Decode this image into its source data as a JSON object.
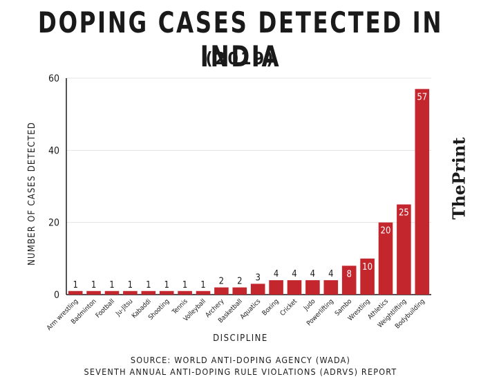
{
  "header": {
    "title": "DOPING CASES DETECTED IN INDIA",
    "subtitle": "(2019)"
  },
  "brand": {
    "name": "ThePrint"
  },
  "footer": {
    "source_line1": "SOURCE: WORLD ANTI-DOPING AGENCY (WADA)",
    "source_line2": "SEVENTH ANNUAL ANTI-DOPING RULE VIOLATIONS (ADRVS) REPORT"
  },
  "colors": {
    "bar": "#c4262e",
    "axis": "#1a1a1a",
    "grid": "#e3e3e3",
    "label_inside": "#ffffff"
  },
  "chart_data": {
    "type": "bar",
    "title": "DOPING CASES DETECTED IN INDIA",
    "subtitle": "(2019)",
    "xlabel": "DISCIPLINE",
    "ylabel": "NUMBER OF CASES DETECTED",
    "ylim": [
      0,
      60
    ],
    "yticks": [
      0,
      20,
      40,
      60
    ],
    "grid": true,
    "categories": [
      "Arm wrestling",
      "Badminton",
      "Football",
      "Ju-Jitsu",
      "Kabaddi",
      "Shooting",
      "Tennis",
      "Volleyball",
      "Archery",
      "Basketball",
      "Aquatics",
      "Boxing",
      "Cricket",
      "Judo",
      "Powerlifting",
      "Sambo",
      "Wrestling",
      "Athletics",
      "Weightlifting",
      "Bodybuilding"
    ],
    "values": [
      1,
      1,
      1,
      1,
      1,
      1,
      1,
      1,
      2,
      2,
      3,
      4,
      4,
      4,
      4,
      8,
      10,
      20,
      25,
      57
    ]
  }
}
